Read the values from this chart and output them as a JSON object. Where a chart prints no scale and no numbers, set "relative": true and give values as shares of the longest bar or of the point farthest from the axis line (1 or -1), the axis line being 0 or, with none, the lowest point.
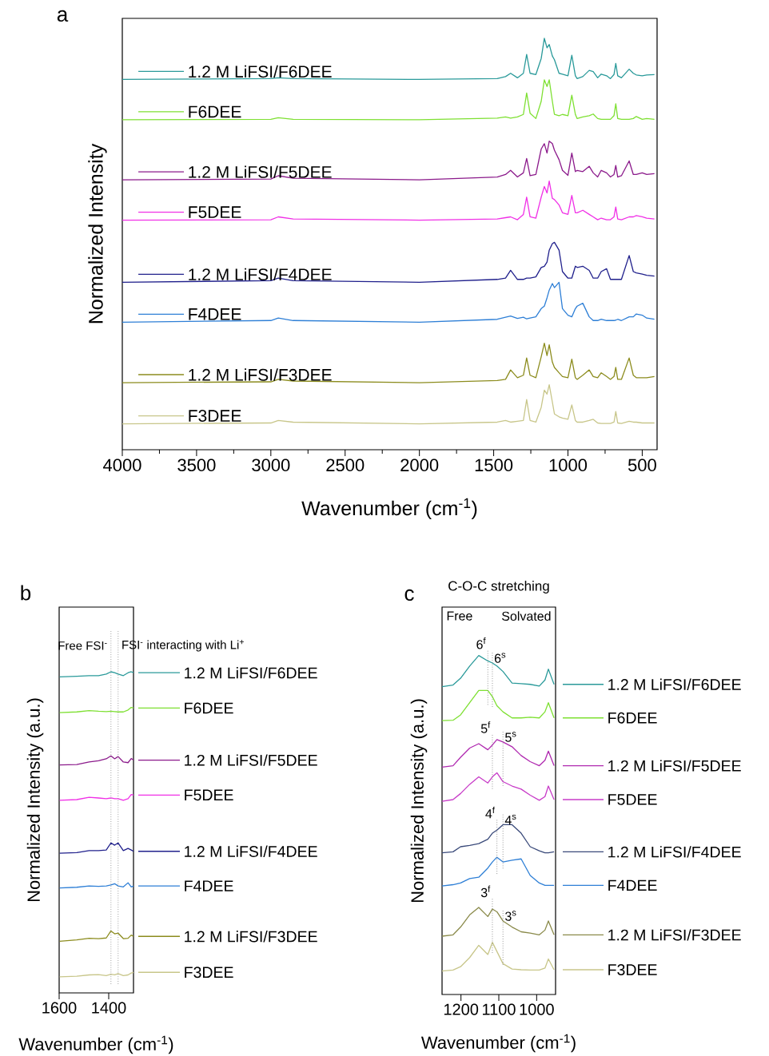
{
  "chart_data": [
    {
      "type": "line",
      "relative": true,
      "title": "a",
      "xlabel": "Wavenumber (cm$^{-1}$)",
      "ylabel": "Normalized Intensity",
      "xlim": [
        4000,
        400
      ],
      "xticks": [
        4000,
        3500,
        3000,
        2500,
        2000,
        1500,
        1000,
        500
      ],
      "legend": "left",
      "x": [
        4000,
        3000,
        2950,
        2850,
        2000,
        1476,
        1420,
        1386,
        1340,
        1300,
        1278,
        1255,
        1216,
        1180,
        1159,
        1141,
        1126,
        1105,
        1091,
        1060,
        1037,
        1000,
        974,
        950,
        938,
        900,
        857,
        830,
        800,
        776,
        740,
        714,
        690,
        678,
        665,
        640,
        588,
        560,
        540,
        500,
        470,
        418
      ],
      "series": [
        {
          "name": "1.2 M LiFSI/F6DEE",
          "color": "#2a9a9a",
          "values": [
            0.9,
            0.902,
            0.904,
            0.902,
            0.9,
            0.902,
            0.907,
            0.915,
            0.904,
            0.915,
            0.961,
            0.915,
            0.912,
            0.951,
            1.0,
            0.977,
            0.985,
            0.957,
            0.948,
            0.915,
            0.913,
            0.909,
            0.959,
            0.909,
            0.902,
            0.907,
            0.922,
            0.919,
            0.904,
            0.913,
            0.909,
            0.902,
            0.912,
            0.939,
            0.909,
            0.904,
            0.925,
            0.915,
            0.911,
            0.909,
            0.911,
            0.912
          ]
        },
        {
          "name": "F6DEE",
          "color": "#7ee032",
          "values": [
            0.802,
            0.803,
            0.807,
            0.803,
            0.802,
            0.806,
            0.809,
            0.806,
            0.809,
            0.815,
            0.867,
            0.818,
            0.805,
            0.847,
            0.899,
            0.883,
            0.899,
            0.847,
            0.815,
            0.812,
            0.815,
            0.812,
            0.862,
            0.815,
            0.805,
            0.809,
            0.812,
            0.816,
            0.805,
            0.803,
            0.803,
            0.803,
            0.812,
            0.841,
            0.805,
            0.803,
            0.803,
            0.805,
            0.81,
            0.803,
            0.805,
            0.803
          ]
        },
        {
          "name": "1.2 M LiFSI/F5DEE",
          "color": "#8b1a8b",
          "values": [
            0.656,
            0.658,
            0.666,
            0.66,
            0.656,
            0.663,
            0.669,
            0.679,
            0.663,
            0.673,
            0.708,
            0.666,
            0.669,
            0.731,
            0.744,
            0.721,
            0.75,
            0.744,
            0.728,
            0.705,
            0.679,
            0.667,
            0.721,
            0.676,
            0.679,
            0.676,
            0.689,
            0.673,
            0.663,
            0.679,
            0.673,
            0.663,
            0.669,
            0.691,
            0.663,
            0.666,
            0.702,
            0.669,
            0.669,
            0.673,
            0.669,
            0.671
          ]
        },
        {
          "name": "F5DEE",
          "color": "#f030e6",
          "values": [
            0.558,
            0.559,
            0.566,
            0.561,
            0.558,
            0.561,
            0.564,
            0.566,
            0.559,
            0.572,
            0.614,
            0.566,
            0.563,
            0.614,
            0.64,
            0.624,
            0.653,
            0.611,
            0.608,
            0.595,
            0.576,
            0.572,
            0.618,
            0.576,
            0.576,
            0.582,
            0.572,
            0.566,
            0.559,
            0.563,
            0.559,
            0.559,
            0.566,
            0.59,
            0.561,
            0.559,
            0.566,
            0.566,
            0.569,
            0.566,
            0.563,
            0.561
          ]
        },
        {
          "name": "1.2 M LiFSI/F4DEE",
          "color": "#20208c",
          "values": [
            0.407,
            0.411,
            0.417,
            0.411,
            0.407,
            0.414,
            0.417,
            0.436,
            0.414,
            0.414,
            0.417,
            0.417,
            0.42,
            0.443,
            0.446,
            0.456,
            0.485,
            0.501,
            0.504,
            0.485,
            0.433,
            0.417,
            0.417,
            0.446,
            0.443,
            0.446,
            0.436,
            0.417,
            0.417,
            0.433,
            0.44,
            0.414,
            0.414,
            0.414,
            0.414,
            0.414,
            0.472,
            0.433,
            0.43,
            0.427,
            0.424,
            0.422
          ]
        },
        {
          "name": "F4DEE",
          "color": "#2e7fd6",
          "values": [
            0.31,
            0.314,
            0.32,
            0.314,
            0.31,
            0.317,
            0.322,
            0.325,
            0.319,
            0.322,
            0.318,
            0.32,
            0.323,
            0.343,
            0.349,
            0.369,
            0.388,
            0.404,
            0.394,
            0.407,
            0.343,
            0.327,
            0.323,
            0.343,
            0.349,
            0.356,
            0.323,
            0.314,
            0.314,
            0.317,
            0.314,
            0.314,
            0.314,
            0.315,
            0.317,
            0.314,
            0.323,
            0.323,
            0.33,
            0.327,
            0.32,
            0.317
          ]
        },
        {
          "name": "1.2 M LiFSI/F3DEE",
          "color": "#8c8c1e",
          "values": [
            0.163,
            0.165,
            0.171,
            0.167,
            0.163,
            0.168,
            0.171,
            0.194,
            0.175,
            0.181,
            0.223,
            0.181,
            0.175,
            0.226,
            0.259,
            0.229,
            0.255,
            0.213,
            0.2,
            0.187,
            0.178,
            0.175,
            0.22,
            0.175,
            0.171,
            0.181,
            0.194,
            0.178,
            0.175,
            0.187,
            0.178,
            0.171,
            0.178,
            0.2,
            0.171,
            0.171,
            0.223,
            0.181,
            0.175,
            0.175,
            0.175,
            0.178
          ]
        },
        {
          "name": "F3DEE",
          "color": "#c8c68a",
          "values": [
            0.063,
            0.065,
            0.071,
            0.067,
            0.063,
            0.067,
            0.071,
            0.067,
            0.069,
            0.071,
            0.122,
            0.071,
            0.067,
            0.103,
            0.145,
            0.135,
            0.158,
            0.116,
            0.087,
            0.08,
            0.077,
            0.074,
            0.109,
            0.071,
            0.067,
            0.067,
            0.071,
            0.074,
            0.065,
            0.064,
            0.064,
            0.064,
            0.067,
            0.093,
            0.065,
            0.064,
            0.069,
            0.067,
            0.067,
            0.065,
            0.065,
            0.065
          ]
        }
      ]
    },
    {
      "type": "line",
      "relative": true,
      "title": "b",
      "xlabel": "Wavenumber (cm$^{-1}$)",
      "ylabel": "Normalized Intensity (a.u.)",
      "xlim": [
        1600,
        1300
      ],
      "xticks": [
        1600,
        1400
      ],
      "legend": "right",
      "x": [
        1598,
        1529,
        1479,
        1441,
        1410,
        1391,
        1376,
        1362,
        1341,
        1322,
        1309,
        1300
      ],
      "ref_lines": [
        {
          "axis": "x",
          "value": 1391,
          "color": "#8c8c8c",
          "line_style": "dotted"
        },
        {
          "axis": "x",
          "value": 1362,
          "color": "#8c8c8c",
          "line_style": "dotted"
        }
      ],
      "annotations": [
        "Free FSI$^{-}$",
        "FSI$^{-}$ interacting with Li$^{+}$"
      ],
      "series": [
        {
          "name": "1.2 M LiFSI/F6DEE",
          "color": "#2a9a9a",
          "values": [
            0.984,
            0.986,
            0.988,
            0.988,
            0.993,
            1.0,
            0.997,
            0.993,
            0.988,
            0.997,
            1.0,
            0.997
          ]
        },
        {
          "name": "F6DEE",
          "color": "#7ee032",
          "values": [
            0.873,
            0.875,
            0.879,
            0.877,
            0.876,
            0.877,
            0.876,
            0.875,
            0.875,
            0.881,
            0.889,
            0.887
          ]
        },
        {
          "name": "1.2 M LiFSI/F5DEE",
          "color": "#8b1a8b",
          "values": [
            0.71,
            0.711,
            0.719,
            0.723,
            0.729,
            0.738,
            0.729,
            0.736,
            0.719,
            0.717,
            0.73,
            0.725
          ]
        },
        {
          "name": "F5DEE",
          "color": "#f030e6",
          "values": [
            0.6,
            0.602,
            0.609,
            0.607,
            0.605,
            0.607,
            0.605,
            0.605,
            0.6,
            0.605,
            0.618,
            0.616
          ]
        },
        {
          "name": "1.2 M LiFSI/F4DEE",
          "color": "#20208c",
          "values": [
            0.435,
            0.437,
            0.443,
            0.443,
            0.445,
            0.467,
            0.46,
            0.467,
            0.443,
            0.45,
            0.445,
            0.441
          ]
        },
        {
          "name": "F4DEE",
          "color": "#2e7fd6",
          "values": [
            0.327,
            0.329,
            0.333,
            0.332,
            0.333,
            0.336,
            0.34,
            0.333,
            0.33,
            0.343,
            0.33,
            0.333
          ]
        },
        {
          "name": "1.2 M LiFSI/F3DEE",
          "color": "#8c8c1e",
          "values": [
            0.161,
            0.165,
            0.17,
            0.169,
            0.171,
            0.193,
            0.184,
            0.186,
            0.169,
            0.17,
            0.18,
            0.176
          ]
        },
        {
          "name": "F3DEE",
          "color": "#c8c68a",
          "values": [
            0.05,
            0.052,
            0.056,
            0.057,
            0.054,
            0.058,
            0.056,
            0.06,
            0.054,
            0.056,
            0.062,
            0.064
          ]
        }
      ]
    },
    {
      "type": "line",
      "relative": true,
      "title": "c",
      "subtitle": "C-O-C stretching",
      "xlabel": "Wavenumber (cm$^{-1}$)",
      "ylabel": "Normalized Intensity (a.u.)",
      "xlim": [
        1250,
        950
      ],
      "xticks": [
        1200,
        1100,
        1000
      ],
      "legend": "right",
      "x": [
        1250,
        1221,
        1201,
        1177,
        1153,
        1129,
        1117,
        1105,
        1089,
        1065,
        1041,
        1017,
        993,
        978,
        969,
        954
      ],
      "annotations": [
        "Free",
        "Solvated",
        {
          "text": "6$^{f}$",
          "x": 1129,
          "y": 0.984
        },
        {
          "text": "6$^{s}$",
          "x": 1117,
          "y": 0.978
        },
        {
          "text": "5$^{f}$",
          "x": 1117,
          "y": 0.736
        },
        {
          "text": "5$^{s}$",
          "x": 1089,
          "y": 0.745
        },
        {
          "text": "4$^{f}$",
          "x": 1105,
          "y": 0.485
        },
        {
          "text": "4$^{s}$",
          "x": 1089,
          "y": 0.501
        },
        {
          "text": "3$^{f}$",
          "x": 1117,
          "y": 0.252
        },
        {
          "text": "3$^{s}$",
          "x": 1089,
          "y": 0.217
        }
      ],
      "series": [
        {
          "name": "1.2 M LiFSI/F6DEE",
          "color": "#2a9a9a",
          "values": [
            0.908,
            0.913,
            0.933,
            0.969,
            1.0,
            0.984,
            0.978,
            0.969,
            0.953,
            0.919,
            0.917,
            0.915,
            0.91,
            0.928,
            0.96,
            0.915
          ]
        },
        {
          "name": "F6DEE",
          "color": "#7ee032",
          "values": [
            0.808,
            0.809,
            0.825,
            0.861,
            0.897,
            0.897,
            0.879,
            0.852,
            0.834,
            0.816,
            0.816,
            0.818,
            0.816,
            0.834,
            0.861,
            0.816
          ]
        },
        {
          "name": "1.2 M LiFSI/F5DEE",
          "color": "#b02ab0",
          "values": [
            0.671,
            0.675,
            0.7,
            0.727,
            0.74,
            0.722,
            0.736,
            0.752,
            0.745,
            0.731,
            0.705,
            0.687,
            0.675,
            0.691,
            0.718,
            0.675
          ]
        },
        {
          "name": "F5DEE",
          "color": "#c83cc8",
          "values": [
            0.57,
            0.575,
            0.593,
            0.62,
            0.642,
            0.624,
            0.642,
            0.654,
            0.628,
            0.615,
            0.606,
            0.588,
            0.573,
            0.584,
            0.615,
            0.575
          ]
        },
        {
          "name": "1.2 M LiFSI/F4DEE",
          "color": "#3a4a7a",
          "values": [
            0.418,
            0.421,
            0.436,
            0.44,
            0.445,
            0.458,
            0.476,
            0.485,
            0.501,
            0.501,
            0.476,
            0.436,
            0.424,
            0.418,
            0.418,
            0.421
          ]
        },
        {
          "name": "F4DEE",
          "color": "#2e7fd6",
          "values": [
            0.32,
            0.324,
            0.329,
            0.342,
            0.346,
            0.373,
            0.391,
            0.405,
            0.391,
            0.396,
            0.4,
            0.351,
            0.329,
            0.322,
            0.322,
            0.322
          ]
        },
        {
          "name": "1.2 M LiFSI/F3DEE",
          "color": "#8a8a4a",
          "values": [
            0.172,
            0.176,
            0.199,
            0.235,
            0.257,
            0.23,
            0.252,
            0.244,
            0.217,
            0.199,
            0.185,
            0.181,
            0.176,
            0.19,
            0.217,
            0.176
          ]
        },
        {
          "name": "F3DEE",
          "color": "#c8c68a",
          "values": [
            0.069,
            0.072,
            0.082,
            0.109,
            0.145,
            0.118,
            0.154,
            0.127,
            0.091,
            0.075,
            0.073,
            0.072,
            0.072,
            0.078,
            0.105,
            0.073
          ]
        }
      ]
    }
  ]
}
